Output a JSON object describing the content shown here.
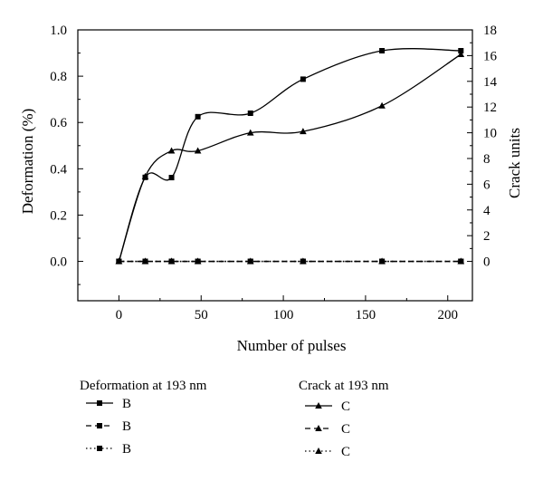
{
  "chart_data": {
    "type": "line",
    "x_label": "Number of pulses",
    "y_left_label": "Deformation (%)",
    "y_right_label": "Crack units",
    "x_ticks": [
      0,
      50,
      100,
      150,
      200
    ],
    "y_left_ticks": [
      "0.0",
      "0.2",
      "0.4",
      "0.6",
      "0.8",
      "1.0"
    ],
    "y_right_ticks": [
      0,
      2,
      4,
      6,
      8,
      10,
      12,
      14,
      16,
      18
    ],
    "xlim": [
      -25,
      215
    ],
    "y_left_lim": [
      -0.17,
      1.0
    ],
    "y_right_lim": [
      -3.06,
      18
    ],
    "grid": false,
    "x": [
      0,
      16,
      32,
      48,
      80,
      112,
      160,
      208
    ],
    "series": [
      {
        "name": "B",
        "axis": "left",
        "marker": "square",
        "line": "solid",
        "values": [
          0,
          0.363,
          0.362,
          0.625,
          0.64,
          0.787,
          0.91,
          0.91
        ]
      },
      {
        "name": "B",
        "axis": "left",
        "marker": "square",
        "line": "dash",
        "values": [
          0,
          0,
          0,
          0,
          0,
          0,
          0,
          0
        ]
      },
      {
        "name": "B",
        "axis": "left",
        "marker": "square",
        "line": "dot",
        "values": [
          0,
          0,
          0,
          0,
          0,
          0,
          0,
          0
        ]
      },
      {
        "name": "C",
        "axis": "right",
        "marker": "triangle",
        "line": "solid",
        "values": [
          0,
          6.6,
          8.6,
          8.6,
          10.0,
          10.1,
          12.1,
          16.1
        ]
      },
      {
        "name": "C",
        "axis": "right",
        "marker": "triangle",
        "line": "dash",
        "values": [
          0,
          0,
          0,
          0,
          0,
          0,
          0,
          0
        ]
      },
      {
        "name": "C",
        "axis": "right",
        "marker": "triangle",
        "line": "dot",
        "values": [
          0,
          0,
          0,
          0,
          0,
          0,
          0,
          0
        ]
      }
    ],
    "legend": [
      {
        "title": "Deformation at 193 nm",
        "entries": [
          "B",
          "B",
          "B"
        ]
      },
      {
        "title": "Crack at 193 nm",
        "entries": [
          "C",
          "C",
          "C"
        ]
      }
    ]
  }
}
